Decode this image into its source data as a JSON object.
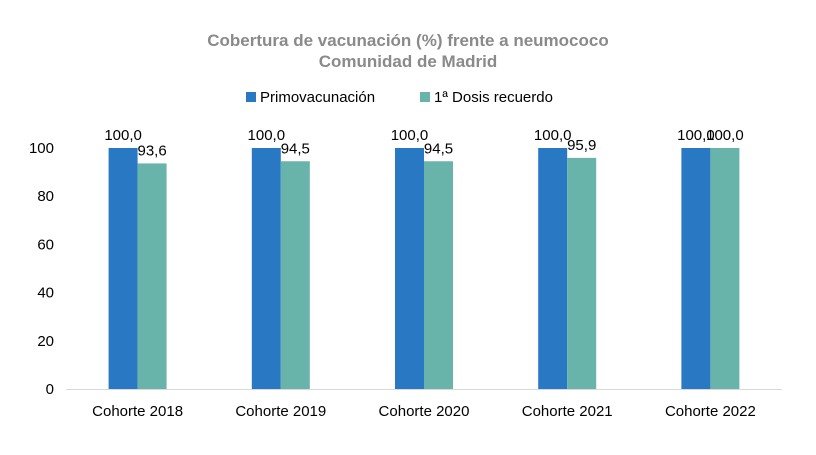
{
  "chart_data": {
    "type": "bar",
    "title": "Cobertura de vacunación (%) frente a neumococo",
    "subtitle": "Comunidad de Madrid",
    "categories": [
      "Cohorte 2018",
      "Cohorte 2019",
      "Cohorte 2020",
      "Cohorte 2021",
      "Cohorte 2022"
    ],
    "series": [
      {
        "name": "Primovacunación",
        "color": "#2878c4",
        "values": [
          100.0,
          100.0,
          100.0,
          100.0,
          100.0
        ],
        "labels": [
          "100,0",
          "100,0",
          "100,0",
          "100,0",
          "100,0"
        ]
      },
      {
        "name": "1ª Dosis recuerdo",
        "color": "#68b4aa",
        "values": [
          93.6,
          94.5,
          94.5,
          95.9,
          100.0
        ],
        "labels": [
          "93,6",
          "94,5",
          "94,5",
          "95,9",
          "100,0"
        ]
      }
    ],
    "ylim": [
      0,
      100
    ],
    "yticks": [
      "0",
      "20",
      "40",
      "60",
      "80",
      "100"
    ],
    "grid": false,
    "legend": "top-center",
    "xlabel": "",
    "ylabel": ""
  }
}
